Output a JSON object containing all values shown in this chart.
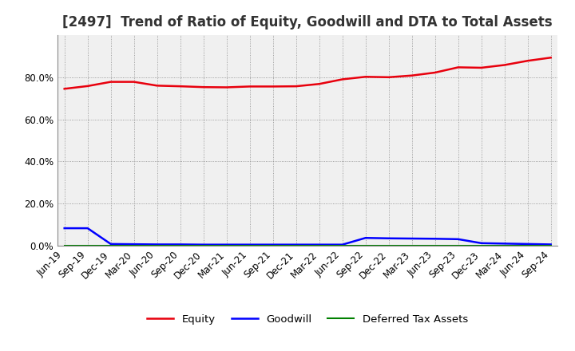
{
  "title": "[2497]  Trend of Ratio of Equity, Goodwill and DTA to Total Assets",
  "x_labels": [
    "Jun-19",
    "Sep-19",
    "Dec-19",
    "Mar-20",
    "Jun-20",
    "Sep-20",
    "Dec-20",
    "Mar-21",
    "Jun-21",
    "Sep-21",
    "Dec-21",
    "Mar-22",
    "Jun-22",
    "Sep-22",
    "Dec-22",
    "Mar-23",
    "Jun-23",
    "Sep-23",
    "Dec-23",
    "Mar-24",
    "Jun-24",
    "Sep-24"
  ],
  "equity": [
    0.745,
    0.758,
    0.778,
    0.778,
    0.76,
    0.757,
    0.753,
    0.752,
    0.756,
    0.756,
    0.757,
    0.768,
    0.79,
    0.802,
    0.8,
    0.808,
    0.822,
    0.847,
    0.845,
    0.858,
    0.878,
    0.893
  ],
  "goodwill": [
    0.083,
    0.083,
    0.008,
    0.007,
    0.006,
    0.006,
    0.005,
    0.005,
    0.005,
    0.005,
    0.005,
    0.005,
    0.005,
    0.037,
    0.035,
    0.034,
    0.033,
    0.031,
    0.012,
    0.01,
    0.008,
    0.006
  ],
  "dta": [
    0.001,
    0.001,
    0.001,
    0.001,
    0.001,
    0.001,
    0.001,
    0.001,
    0.001,
    0.001,
    0.001,
    0.001,
    0.001,
    0.001,
    0.001,
    0.001,
    0.001,
    0.001,
    0.001,
    0.001,
    0.001,
    0.001
  ],
  "equity_color": "#e8000d",
  "goodwill_color": "#0000ff",
  "dta_color": "#008000",
  "background_color": "#ffffff",
  "plot_bg_color": "#f0f0f0",
  "grid_color": "#888888",
  "ylim": [
    0.0,
    1.0
  ],
  "ytick_values": [
    0.0,
    0.2,
    0.4,
    0.6,
    0.8
  ],
  "legend_labels": [
    "Equity",
    "Goodwill",
    "Deferred Tax Assets"
  ],
  "title_fontsize": 12,
  "tick_fontsize": 8.5
}
